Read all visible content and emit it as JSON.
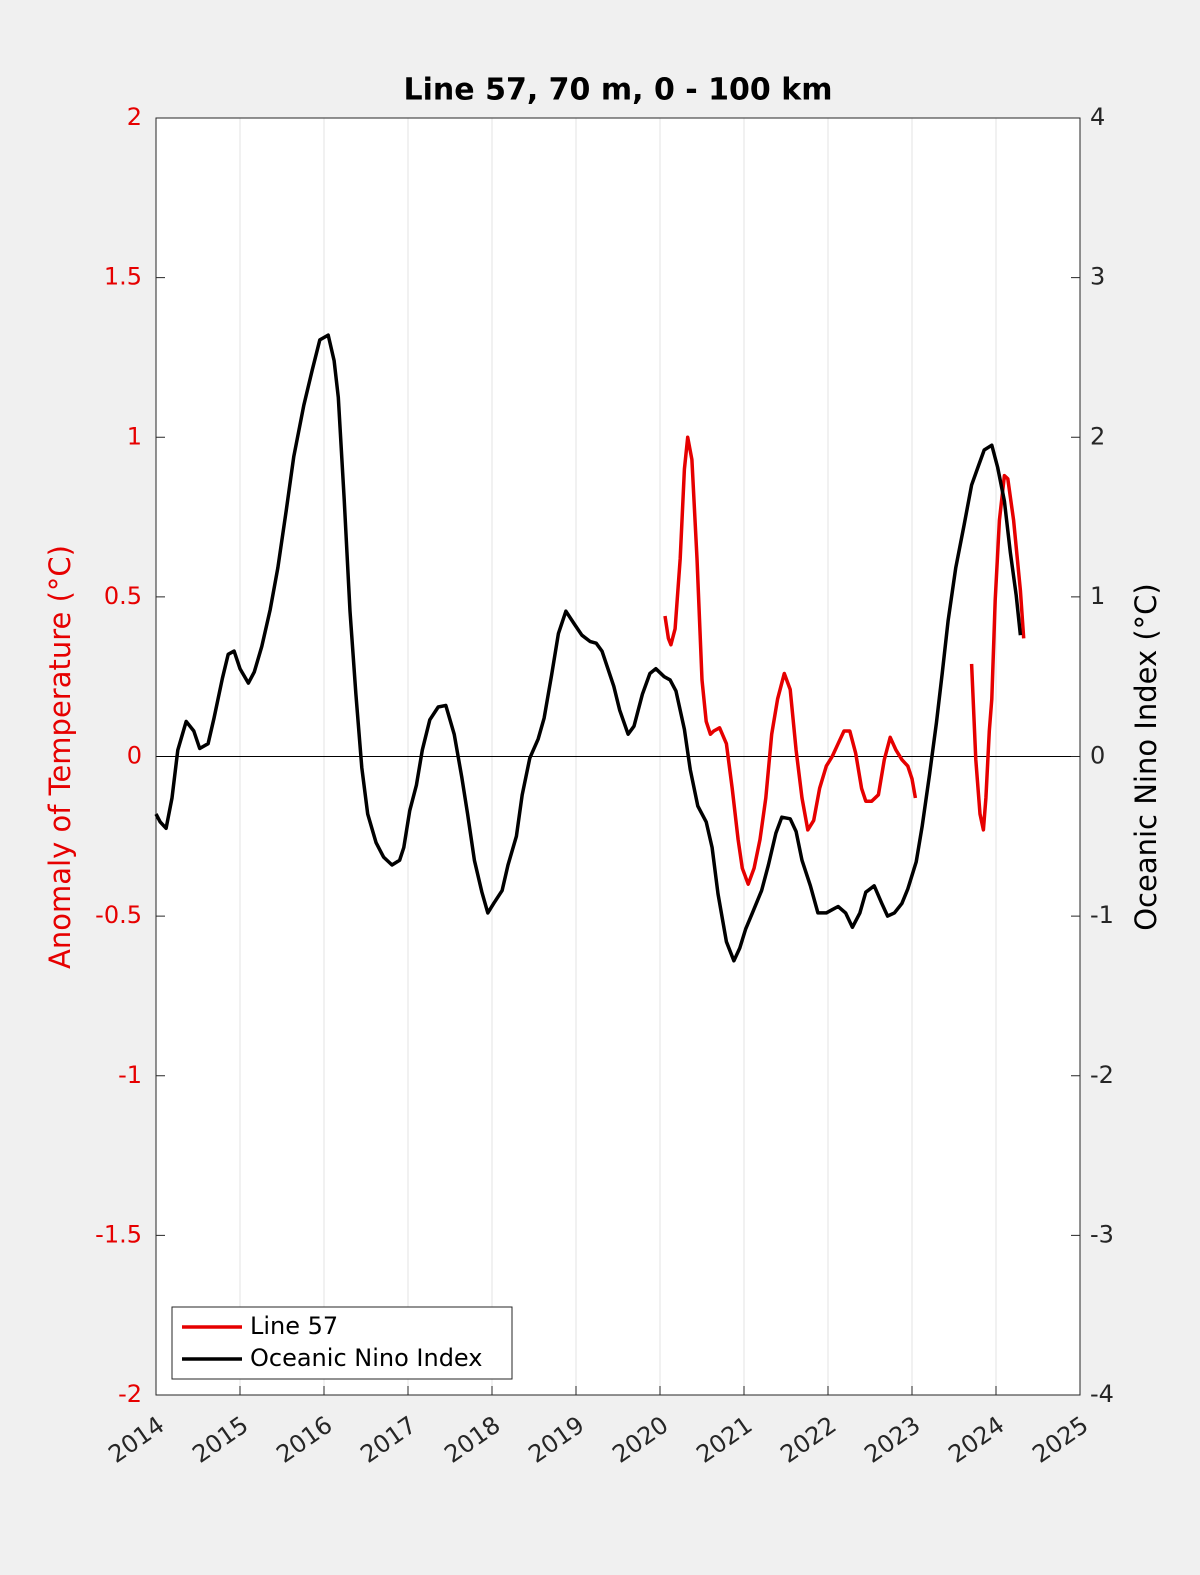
{
  "chart_data": {
    "type": "line",
    "title": "Line 57, 70 m, 0 - 100 km",
    "ylabel": "Anomaly of Temperature (°C)",
    "y2label": "Oceanic Nino Index (°C)",
    "xlim": [
      2014,
      2025
    ],
    "xticks": [
      2014,
      2015,
      2016,
      2017,
      2018,
      2019,
      2020,
      2021,
      2022,
      2023,
      2024,
      2025
    ],
    "ylim": [
      -2,
      2
    ],
    "yticks": [
      -2,
      -1.5,
      -1,
      -0.5,
      0,
      0.5,
      1,
      1.5,
      2
    ],
    "y2lim": [
      -4,
      4
    ],
    "y2ticks": [
      -4,
      -3,
      -2,
      -1,
      0,
      1,
      2,
      3,
      4
    ],
    "ycolor": "#e60000",
    "grid": "x",
    "zero_line": true,
    "legend": "lower left",
    "series": [
      {
        "name": "Line 57",
        "color": "#e60000",
        "axis": "y",
        "x": [
          2020.06,
          2020.1,
          2020.13,
          2020.18,
          2020.24,
          2020.29,
          2020.33,
          2020.38,
          2020.44,
          2020.5,
          2020.55,
          2020.6,
          2020.64,
          2020.71,
          2020.79,
          2020.86,
          2020.93,
          2020.98,
          2021.05,
          2021.12,
          2021.19,
          2021.26,
          2021.33,
          2021.4,
          2021.48,
          2021.55,
          2021.62,
          2021.69,
          2021.76,
          2021.83,
          2021.9,
          2021.98,
          2022.05,
          2022.12,
          2022.19,
          2022.26,
          2022.33,
          2022.4,
          2022.45,
          2022.52,
          2022.6,
          2022.67,
          2022.74,
          2022.81,
          2022.88,
          2022.95,
          2023.0,
          2023.04,
          2023.4,
          2023.71,
          2023.76,
          2023.81,
          2023.85,
          2023.88,
          2023.92,
          2023.95,
          2023.99,
          2024.04,
          2024.1,
          2024.14,
          2024.21,
          2024.29,
          2024.33
        ],
        "values": [
          0.44,
          0.37,
          0.35,
          0.4,
          0.62,
          0.9,
          1.0,
          0.93,
          0.62,
          0.24,
          0.11,
          0.07,
          0.08,
          0.09,
          0.04,
          -0.1,
          -0.26,
          -0.35,
          -0.4,
          -0.35,
          -0.26,
          -0.13,
          0.07,
          0.18,
          0.26,
          0.21,
          0.02,
          -0.13,
          -0.23,
          -0.2,
          -0.1,
          -0.03,
          0.0,
          0.04,
          0.08,
          0.08,
          0.01,
          -0.1,
          -0.14,
          -0.14,
          -0.12,
          -0.01,
          0.06,
          0.02,
          -0.01,
          -0.03,
          -0.07,
          -0.13,
          null,
          0.29,
          -0.01,
          -0.18,
          -0.23,
          -0.13,
          0.08,
          0.18,
          0.49,
          0.74,
          0.88,
          0.87,
          0.74,
          0.52,
          0.37
        ]
      },
      {
        "name": "Oceanic Nino Index",
        "color": "#000000",
        "axis": "y2",
        "x": [
          2014.0,
          2014.05,
          2014.12,
          2014.19,
          2014.26,
          2014.36,
          2014.45,
          2014.52,
          2014.62,
          2014.69,
          2014.79,
          2014.86,
          2014.93,
          2015.0,
          2015.1,
          2015.17,
          2015.26,
          2015.36,
          2015.45,
          2015.55,
          2015.64,
          2015.76,
          2015.86,
          2015.95,
          2016.05,
          2016.12,
          2016.17,
          2016.24,
          2016.31,
          2016.38,
          2016.45,
          2016.52,
          2016.62,
          2016.71,
          2016.81,
          2016.9,
          2016.95,
          2017.02,
          2017.1,
          2017.17,
          2017.26,
          2017.36,
          2017.45,
          2017.55,
          2017.64,
          2017.71,
          2017.79,
          2017.88,
          2017.95,
          2018.02,
          2018.12,
          2018.19,
          2018.29,
          2018.36,
          2018.45,
          2018.55,
          2018.62,
          2018.71,
          2018.79,
          2018.88,
          2018.98,
          2019.07,
          2019.17,
          2019.24,
          2019.31,
          2019.38,
          2019.45,
          2019.52,
          2019.62,
          2019.69,
          2019.79,
          2019.88,
          2019.95,
          2020.05,
          2020.12,
          2020.19,
          2020.29,
          2020.36,
          2020.45,
          2020.55,
          2020.62,
          2020.69,
          2020.79,
          2020.88,
          2020.95,
          2021.02,
          2021.1,
          2021.21,
          2021.29,
          2021.38,
          2021.45,
          2021.55,
          2021.62,
          2021.69,
          2021.79,
          2021.88,
          2021.98,
          2022.05,
          2022.12,
          2022.21,
          2022.29,
          2022.38,
          2022.45,
          2022.55,
          2022.64,
          2022.71,
          2022.79,
          2022.88,
          2022.95,
          2023.05,
          2023.12,
          2023.21,
          2023.29,
          2023.36,
          2023.43,
          2023.52,
          2023.62,
          2023.71,
          2023.79,
          2023.86,
          2023.95,
          2024.02,
          2024.1,
          2024.17,
          2024.24,
          2024.29
        ],
        "values": [
          -0.36,
          -0.41,
          -0.45,
          -0.26,
          0.04,
          0.22,
          0.16,
          0.05,
          0.08,
          0.24,
          0.49,
          0.64,
          0.66,
          0.55,
          0.46,
          0.53,
          0.69,
          0.92,
          1.18,
          1.54,
          1.88,
          2.2,
          2.42,
          2.61,
          2.64,
          2.48,
          2.25,
          1.61,
          0.91,
          0.39,
          -0.07,
          -0.36,
          -0.54,
          -0.63,
          -0.68,
          -0.65,
          -0.57,
          -0.34,
          -0.18,
          0.04,
          0.23,
          0.31,
          0.32,
          0.14,
          -0.13,
          -0.36,
          -0.65,
          -0.85,
          -0.98,
          -0.92,
          -0.84,
          -0.68,
          -0.5,
          -0.24,
          -0.01,
          0.11,
          0.24,
          0.51,
          0.77,
          0.91,
          0.83,
          0.76,
          0.72,
          0.71,
          0.66,
          0.55,
          0.44,
          0.29,
          0.14,
          0.19,
          0.39,
          0.52,
          0.55,
          0.5,
          0.48,
          0.41,
          0.17,
          -0.08,
          -0.31,
          -0.41,
          -0.57,
          -0.86,
          -1.16,
          -1.28,
          -1.2,
          -1.08,
          -0.98,
          -0.84,
          -0.68,
          -0.48,
          -0.38,
          -0.39,
          -0.47,
          -0.65,
          -0.81,
          -0.98,
          -0.98,
          -0.96,
          -0.94,
          -0.98,
          -1.07,
          -0.98,
          -0.85,
          -0.81,
          -0.92,
          -1.0,
          -0.98,
          -0.92,
          -0.83,
          -0.66,
          -0.44,
          -0.11,
          0.21,
          0.52,
          0.85,
          1.18,
          1.45,
          1.7,
          1.82,
          1.92,
          1.95,
          1.81,
          1.6,
          1.28,
          1.01,
          0.76
        ]
      }
    ]
  }
}
